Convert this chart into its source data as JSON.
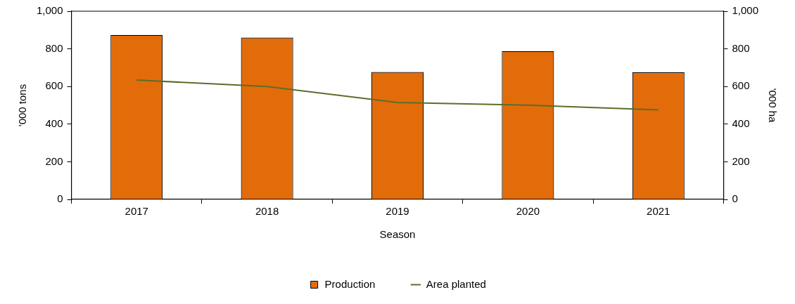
{
  "chart_data": {
    "type": "bar",
    "xlabel": "Season",
    "ylabel": "'000 tons",
    "y2label": "'000 ha",
    "categories": [
      "2017",
      "2018",
      "2019",
      "2020",
      "2021"
    ],
    "series": [
      {
        "name": "Production",
        "color": "#e36c0a",
        "values": [
          874,
          860,
          677,
          788,
          675
        ]
      },
      {
        "name": "Area planted",
        "type": "line",
        "axis": "y2",
        "color": "#5a6e2a",
        "values": [
          634,
          600,
          515,
          501,
          476
        ]
      }
    ],
    "ylim": [
      0,
      1000
    ],
    "yticks": [
      0,
      200,
      400,
      600,
      800,
      {
        "value": 1000,
        "label": "1,000"
      }
    ],
    "y2lim": [
      0,
      1000
    ],
    "y2ticks": [
      0,
      200,
      400,
      600,
      800,
      {
        "value": 1000,
        "label": "1,000"
      }
    ],
    "grid": false,
    "legend": "bottom",
    "marker": "none"
  }
}
